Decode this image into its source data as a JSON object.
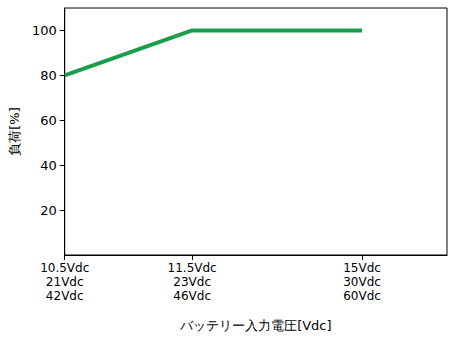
{
  "chart_data": {
    "type": "line",
    "categories": [
      "10.5Vdc\n21Vdc\n42Vdc",
      null,
      null,
      "11.5Vdc\n23Vdc\n46Vdc",
      null,
      null,
      null,
      "15Vdc\n30Vdc\n60Vdc",
      null,
      null
    ],
    "values": [
      80,
      null,
      null,
      100,
      null,
      null,
      null,
      100,
      null,
      null
    ],
    "color": "#1b9e4b",
    "xlabel": "バッテリー入力電圧[Vdc]",
    "ylabel": "負荷[%]",
    "ylim": [
      0,
      110
    ],
    "yticks": [
      20,
      40,
      60,
      80,
      100
    ],
    "grid": false
  }
}
